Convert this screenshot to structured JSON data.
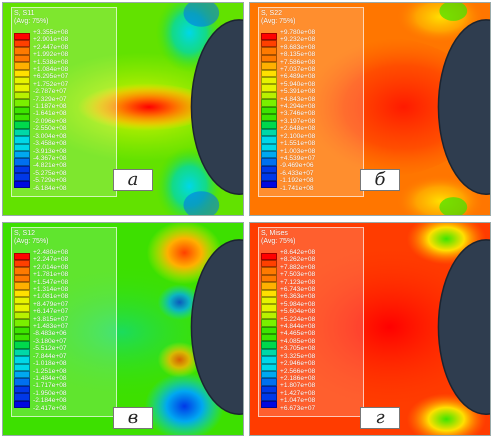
{
  "palette": [
    "#ff0000",
    "#ff4000",
    "#ff7a00",
    "#ffb000",
    "#ffe000",
    "#e6f300",
    "#b8f000",
    "#7aef00",
    "#3de400",
    "#00d84c",
    "#00d8a8",
    "#00d8e8",
    "#00a8f0",
    "#0070f0",
    "#0038e8",
    "#0008e0"
  ],
  "panels": [
    {
      "title": "S, S11",
      "subtitle": "(Avg: 75%)",
      "label": "а",
      "values": [
        "+3.355e+08",
        "+2.901e+08",
        "+2.447e+08",
        "+1.992e+08",
        "+1.538e+08",
        "+1.084e+08",
        "+6.295e+07",
        "+1.752e+07",
        "-2.787e+07",
        "-7.329e+07",
        "-1.187e+08",
        "-1.641e+08",
        "-2.096e+08",
        "-2.550e+08",
        "-3.004e+08",
        "-3.458e+08",
        "-3.913e+08",
        "-4.367e+08",
        "-4.821e+08",
        "-5.275e+08",
        "-5.729e+08",
        "-6.184e+08"
      ]
    },
    {
      "title": "S, S22",
      "subtitle": "(Avg: 75%)",
      "label": "б",
      "values": [
        "+9.780e+08",
        "+9.232e+08",
        "+8.683e+08",
        "+8.135e+08",
        "+7.586e+08",
        "+7.037e+08",
        "+6.489e+08",
        "+5.940e+08",
        "+5.391e+08",
        "+4.843e+08",
        "+4.294e+08",
        "+3.746e+08",
        "+3.197e+08",
        "+2.648e+08",
        "+2.100e+08",
        "+1.551e+08",
        "+1.003e+08",
        "+4.539e+07",
        "-9.469e+06",
        "-6.433e+07",
        "-1.192e+08",
        "-1.741e+08"
      ]
    },
    {
      "title": "S, S12",
      "subtitle": "(Avg: 75%)",
      "label": "в",
      "values": [
        "+2.480e+08",
        "+2.247e+08",
        "+2.014e+08",
        "+1.781e+08",
        "+1.547e+08",
        "+1.314e+08",
        "+1.081e+08",
        "+8.479e+07",
        "+6.147e+07",
        "+3.815e+07",
        "+1.483e+07",
        "-8.483e+06",
        "-3.180e+07",
        "-5.512e+07",
        "-7.844e+07",
        "-1.018e+08",
        "-1.251e+08",
        "-1.484e+08",
        "-1.717e+08",
        "-1.950e+08",
        "-2.184e+08",
        "-2.417e+08"
      ]
    },
    {
      "title": "S, Mises",
      "subtitle": "(Avg: 75%)",
      "label": "г",
      "values": [
        "+8.642e+08",
        "+8.262e+08",
        "+7.882e+08",
        "+7.503e+08",
        "+7.123e+08",
        "+6.743e+08",
        "+6.363e+08",
        "+5.984e+08",
        "+5.604e+08",
        "+5.224e+08",
        "+4.844e+08",
        "+4.465e+08",
        "+4.085e+08",
        "+3.705e+08",
        "+3.325e+08",
        "+2.946e+08",
        "+2.566e+08",
        "+2.186e+08",
        "+1.807e+08",
        "+1.427e+08",
        "+1.047e+08",
        "+6.673e+07"
      ]
    }
  ]
}
